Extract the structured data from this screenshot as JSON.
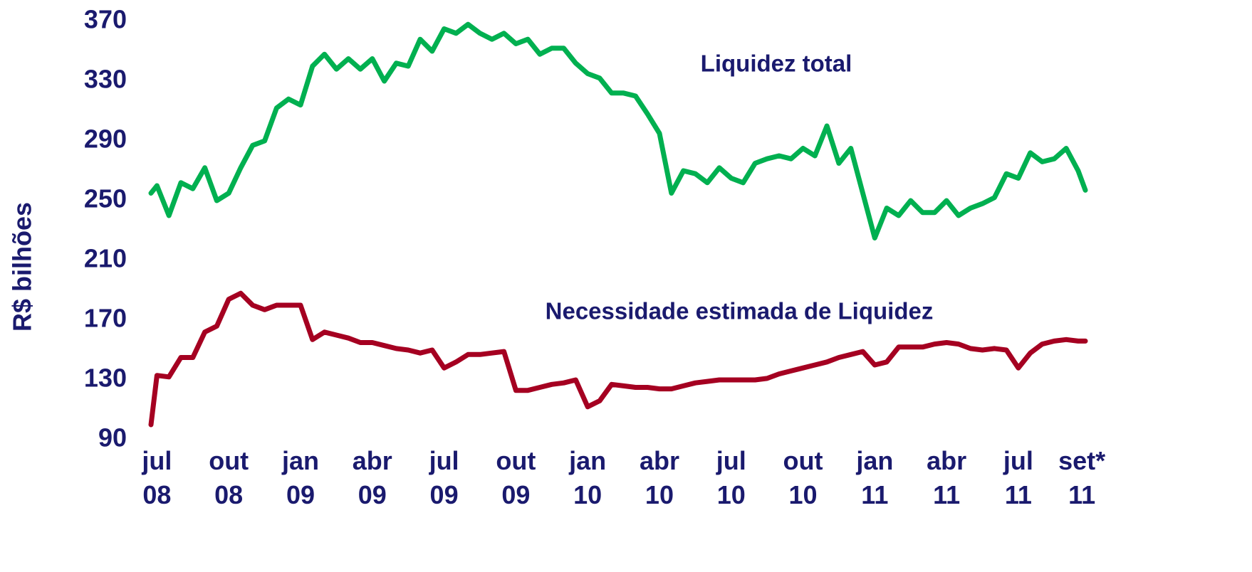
{
  "chart_data": {
    "type": "line",
    "y_label": "R$ bilhões",
    "x": [
      -0.25,
      0,
      0.5,
      1,
      1.5,
      2,
      2.5,
      3,
      3.5,
      4,
      4.5,
      5,
      5.5,
      6,
      6.5,
      7,
      7.5,
      8,
      8.5,
      9,
      9.5,
      10,
      10.5,
      11,
      11.5,
      12,
      12.5,
      13,
      13.5,
      14,
      14.5,
      15,
      15.5,
      16,
      16.5,
      17,
      17.5,
      18,
      18.5,
      19,
      19.5,
      20,
      20.5,
      21,
      21.5,
      22,
      22.5,
      23,
      23.5,
      24,
      24.5,
      25,
      25.5,
      26,
      26.5,
      27,
      27.5,
      28,
      28.5,
      29,
      29.5,
      30,
      30.5,
      31,
      31.5,
      32,
      32.5,
      33,
      33.5,
      34,
      34.5,
      35,
      35.5,
      36,
      36.5,
      37,
      37.5,
      38,
      38.5,
      38.8
    ],
    "series": [
      {
        "name": "Liquidez total",
        "color": "#00b050",
        "values": [
          255,
          260,
          240,
          262,
          258,
          272,
          250,
          255,
          272,
          287,
          290,
          312,
          318,
          314,
          340,
          348,
          338,
          345,
          338,
          345,
          330,
          342,
          340,
          358,
          350,
          365,
          362,
          368,
          362,
          358,
          362,
          355,
          358,
          348,
          352,
          352,
          342,
          335,
          332,
          322,
          322,
          320,
          308,
          295,
          255,
          270,
          268,
          262,
          272,
          265,
          262,
          275,
          278,
          280,
          278,
          285,
          280,
          300,
          275,
          285,
          255,
          225,
          245,
          240,
          250,
          242,
          242,
          250,
          240,
          245,
          248,
          252,
          268,
          265,
          282,
          276,
          278,
          285,
          270,
          257
        ]
      },
      {
        "name": "Necessidade estimada de Liquidez",
        "color": "#a50021",
        "values": [
          100,
          133,
          132,
          145,
          145,
          162,
          166,
          184,
          188,
          180,
          177,
          180,
          180,
          180,
          157,
          162,
          160,
          158,
          155,
          155,
          153,
          151,
          150,
          148,
          150,
          138,
          142,
          147,
          147,
          148,
          149,
          123,
          123,
          125,
          127,
          128,
          130,
          112,
          116,
          127,
          126,
          125,
          125,
          124,
          124,
          126,
          128,
          129,
          130,
          130,
          130,
          130,
          131,
          134,
          136,
          138,
          140,
          142,
          145,
          147,
          149,
          140,
          142,
          152,
          152,
          152,
          154,
          155,
          154,
          151,
          150,
          151,
          150,
          138,
          148,
          154,
          156,
          157,
          156,
          156
        ]
      }
    ],
    "xlim": [
      -0.25,
      38.8
    ],
    "xticks": [
      {
        "value": 0,
        "label": "jul 08"
      },
      {
        "value": 3,
        "label": "out 08"
      },
      {
        "value": 6,
        "label": "jan 09"
      },
      {
        "value": 9,
        "label": "abr 09"
      },
      {
        "value": 12,
        "label": "jul 09"
      },
      {
        "value": 15,
        "label": "out 09"
      },
      {
        "value": 18,
        "label": "jan 10"
      },
      {
        "value": 21,
        "label": "abr 10"
      },
      {
        "value": 24,
        "label": "jul 10"
      },
      {
        "value": 27,
        "label": "out 10"
      },
      {
        "value": 30,
        "label": "jan 11"
      },
      {
        "value": 33,
        "label": "abr 11"
      },
      {
        "value": 36,
        "label": "jul 11"
      },
      {
        "value": 38,
        "label": "set* 11"
      }
    ],
    "ylim": [
      90,
      370
    ],
    "yticks": [
      90,
      130,
      170,
      210,
      250,
      290,
      330,
      370
    ],
    "grid": false
  }
}
